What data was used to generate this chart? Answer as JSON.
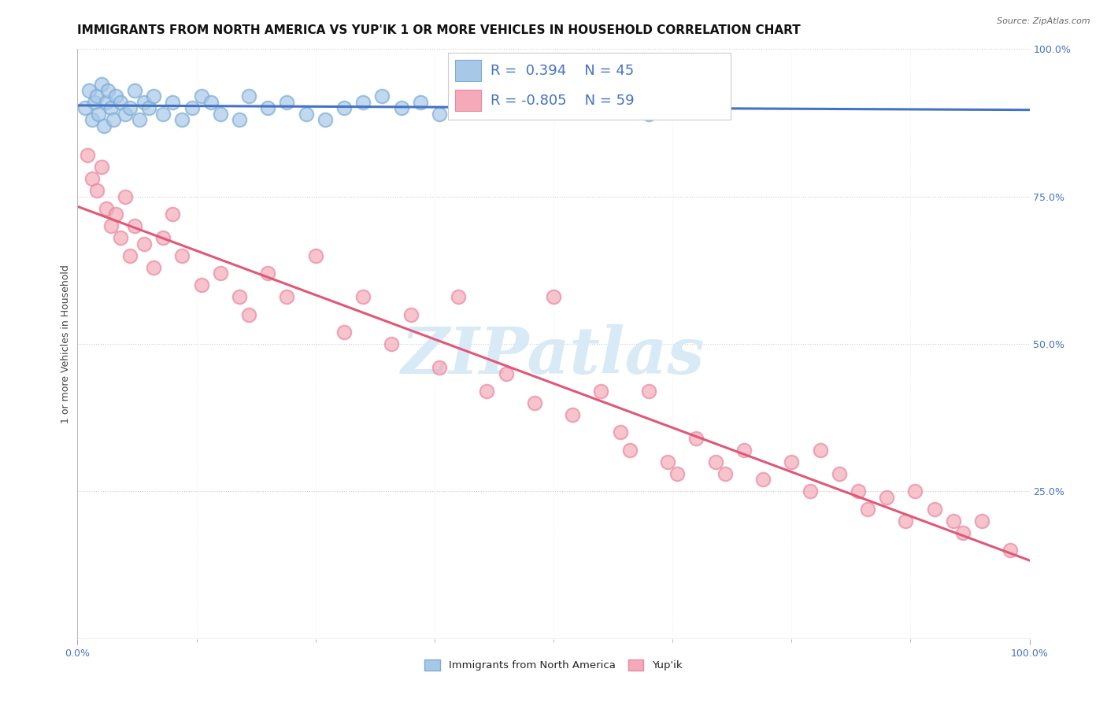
{
  "title": "IMMIGRANTS FROM NORTH AMERICA VS YUP'IK 1 OR MORE VEHICLES IN HOUSEHOLD CORRELATION CHART",
  "source": "Source: ZipAtlas.com",
  "ylabel": "1 or more Vehicles in Household",
  "xlim": [
    0,
    100
  ],
  "ylim": [
    0,
    100
  ],
  "legend_labels": [
    "Immigrants from North America",
    "Yup'ik"
  ],
  "blue_color": "#a8c8e8",
  "blue_edge_color": "#7aacd4",
  "blue_line_color": "#4472c4",
  "pink_color": "#f4aaB8",
  "pink_edge_color": "#e888a0",
  "pink_line_color": "#e05878",
  "R_blue": 0.394,
  "N_blue": 45,
  "R_pink": -0.805,
  "N_pink": 59,
  "blue_x": [
    0.8,
    1.2,
    1.5,
    1.8,
    2.0,
    2.2,
    2.5,
    2.8,
    3.0,
    3.2,
    3.5,
    3.8,
    4.0,
    4.5,
    5.0,
    5.5,
    6.0,
    6.5,
    7.0,
    7.5,
    8.0,
    9.0,
    10.0,
    11.0,
    12.0,
    13.0,
    14.0,
    15.0,
    17.0,
    18.0,
    20.0,
    22.0,
    24.0,
    26.0,
    28.0,
    30.0,
    32.0,
    34.0,
    36.0,
    38.0,
    40.0,
    42.0,
    44.0,
    60.0,
    65.0
  ],
  "blue_y": [
    90,
    93,
    88,
    91,
    92,
    89,
    94,
    87,
    91,
    93,
    90,
    88,
    92,
    91,
    89,
    90,
    93,
    88,
    91,
    90,
    92,
    89,
    91,
    88,
    90,
    92,
    91,
    89,
    88,
    92,
    90,
    91,
    89,
    88,
    90,
    91,
    92,
    90,
    91,
    89,
    90,
    92,
    91,
    89,
    90
  ],
  "pink_x": [
    1.0,
    1.5,
    2.0,
    2.5,
    3.0,
    3.5,
    4.0,
    4.5,
    5.0,
    5.5,
    6.0,
    7.0,
    8.0,
    9.0,
    10.0,
    11.0,
    13.0,
    15.0,
    17.0,
    18.0,
    20.0,
    22.0,
    25.0,
    28.0,
    30.0,
    33.0,
    35.0,
    38.0,
    40.0,
    43.0,
    45.0,
    48.0,
    50.0,
    52.0,
    55.0,
    57.0,
    58.0,
    60.0,
    62.0,
    63.0,
    65.0,
    67.0,
    68.0,
    70.0,
    72.0,
    75.0,
    77.0,
    78.0,
    80.0,
    82.0,
    83.0,
    85.0,
    87.0,
    88.0,
    90.0,
    92.0,
    93.0,
    95.0,
    98.0
  ],
  "pink_y": [
    82,
    78,
    76,
    80,
    73,
    70,
    72,
    68,
    75,
    65,
    70,
    67,
    63,
    68,
    72,
    65,
    60,
    62,
    58,
    55,
    62,
    58,
    65,
    52,
    58,
    50,
    55,
    46,
    58,
    42,
    45,
    40,
    58,
    38,
    42,
    35,
    32,
    42,
    30,
    28,
    34,
    30,
    28,
    32,
    27,
    30,
    25,
    32,
    28,
    25,
    22,
    24,
    20,
    25,
    22,
    20,
    18,
    20,
    15
  ],
  "background_color": "#ffffff",
  "watermark_text": "ZIPatlas",
  "watermark_color": "#d8eaf5",
  "title_fontsize": 11,
  "axis_label_fontsize": 9,
  "tick_fontsize": 9,
  "stat_box_text_blue": "R =  0.394    N = 45",
  "stat_box_text_pink": "R = -0.805    N = 59"
}
